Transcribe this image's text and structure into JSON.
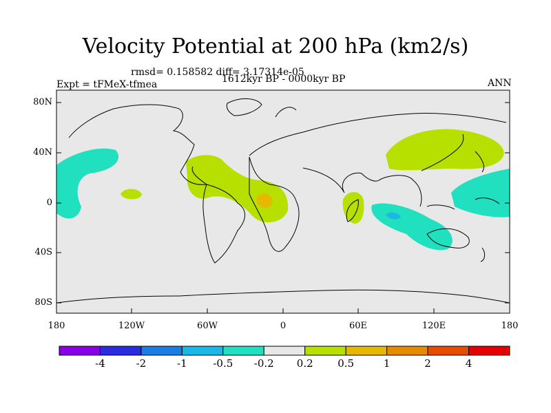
{
  "title": "Velocity Potential at 200 hPa (km2/s)",
  "stats": "rmsd= 0.158582  diff= 3.17314e-05",
  "left_label": "Expt = tFMeX-tfmea",
  "center_label": "1612kyr BP - 0000kyr BP",
  "right_label": "ANN",
  "lat_labels": [
    "80N",
    "40N",
    "0",
    "40S",
    "80S"
  ],
  "lon_labels": [
    "180",
    "120W",
    "60W",
    "0",
    "60E",
    "120E",
    "180"
  ],
  "colorbar": {
    "colors": [
      "#8a00e6",
      "#2b2be0",
      "#1a7fe0",
      "#1ab8e6",
      "#20e0c0",
      "#e8e8e8",
      "#b7e000",
      "#e6b800",
      "#e68a00",
      "#e64d00",
      "#e60000"
    ],
    "labels": [
      "-4",
      "-2",
      "-1",
      "-0.5",
      "-0.2",
      "0.2",
      "0.5",
      "1",
      "2",
      "4"
    ]
  }
}
